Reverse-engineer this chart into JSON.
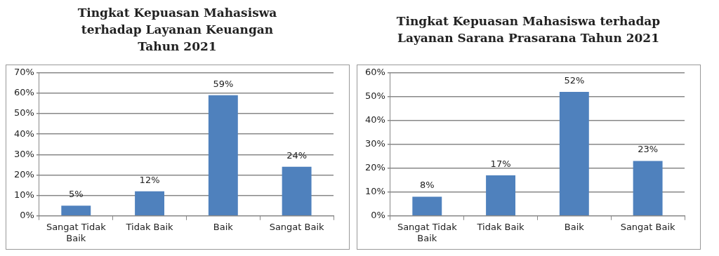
{
  "chart_data": [
    {
      "type": "bar",
      "title": "Tingkat Kepuasan Mahasiswa terhadap Layanan Keuangan Tahun 2021",
      "categories": [
        "Sangat Tidak Baik",
        "Tidak Baik",
        "Baik",
        "Sangat Baik"
      ],
      "values": [
        5,
        12,
        59,
        24
      ],
      "color": "#4f81bd",
      "value_labels": [
        "5%",
        "12%",
        "59%",
        "24%"
      ],
      "ylim": [
        0,
        70
      ],
      "yticks": [
        {
          "value": 0,
          "label": "0%"
        },
        {
          "value": 10,
          "label": "10%"
        },
        {
          "value": 20,
          "label": "20%"
        },
        {
          "value": 30,
          "label": "30%"
        },
        {
          "value": 40,
          "label": "40%"
        },
        {
          "value": 50,
          "label": "50%"
        },
        {
          "value": 60,
          "label": "60%"
        },
        {
          "value": 70,
          "label": "70%"
        }
      ],
      "grid": "y",
      "legend": false
    },
    {
      "type": "bar",
      "title": "Tingkat Kepuasan Mahasiswa terhadap Layanan Sarana Prasarana Tahun 2021",
      "categories": [
        "Sangat Tidak Baik",
        "Tidak Baik",
        "Baik",
        "Sangat Baik"
      ],
      "values": [
        8,
        17,
        52,
        23
      ],
      "color": "#4f81bd",
      "value_labels": [
        "8%",
        "17%",
        "52%",
        "23%"
      ],
      "ylim": [
        0,
        60
      ],
      "yticks": [
        {
          "value": 0,
          "label": "0%"
        },
        {
          "value": 10,
          "label": "10%"
        },
        {
          "value": 20,
          "label": "20%"
        },
        {
          "value": 30,
          "label": "30%"
        },
        {
          "value": 40,
          "label": "40%"
        },
        {
          "value": 50,
          "label": "50%"
        },
        {
          "value": 60,
          "label": "60%"
        }
      ],
      "grid": "y",
      "legend": false
    }
  ]
}
